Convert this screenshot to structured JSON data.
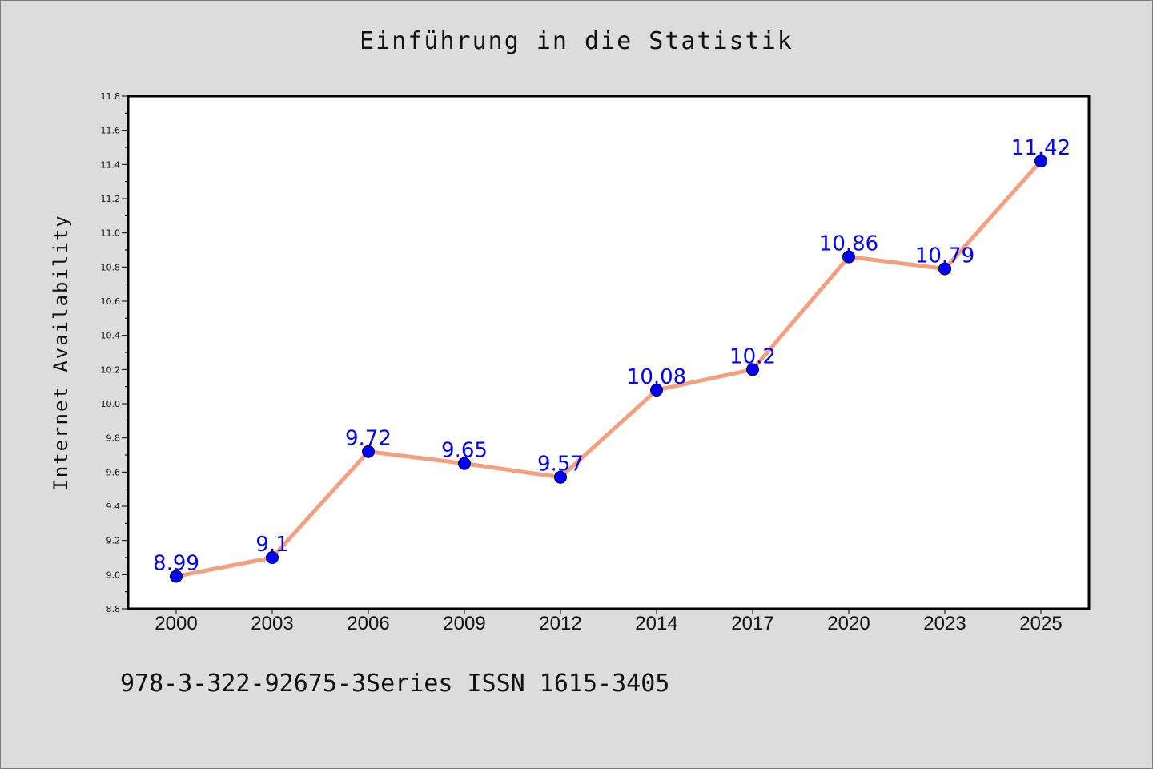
{
  "chart_data": {
    "type": "line",
    "title": "Einführung in die Statistik",
    "xlabel": "",
    "ylabel": "Internet Availability",
    "categories": [
      "2000",
      "2003",
      "2006",
      "2009",
      "2012",
      "2014",
      "2017",
      "2020",
      "2023",
      "2025"
    ],
    "series": [
      {
        "values": [
          8.99,
          9.1,
          9.72,
          9.65,
          9.57,
          10.08,
          10.2,
          10.86,
          10.79,
          11.42
        ],
        "line_color": "#f4a07e",
        "marker_color": "#0000ff"
      }
    ],
    "data_labels": [
      "8.99",
      "9.1",
      "9.72",
      "9.65",
      "9.57",
      "10.08",
      "10.2",
      "10.86",
      "10.79",
      "11.42"
    ],
    "ylim": [
      8.8,
      11.8
    ],
    "yticks": [
      "8.8",
      "9.0",
      "9.2",
      "9.4",
      "9.6",
      "9.8",
      "10.0",
      "10.2",
      "10.4",
      "10.6",
      "10.8",
      "11.0",
      "11.2",
      "11.4",
      "11.6",
      "11.8"
    ],
    "grid": false,
    "legend": "none"
  },
  "footer": "978-3-322-92675-3Series ISSN 1615-3405"
}
